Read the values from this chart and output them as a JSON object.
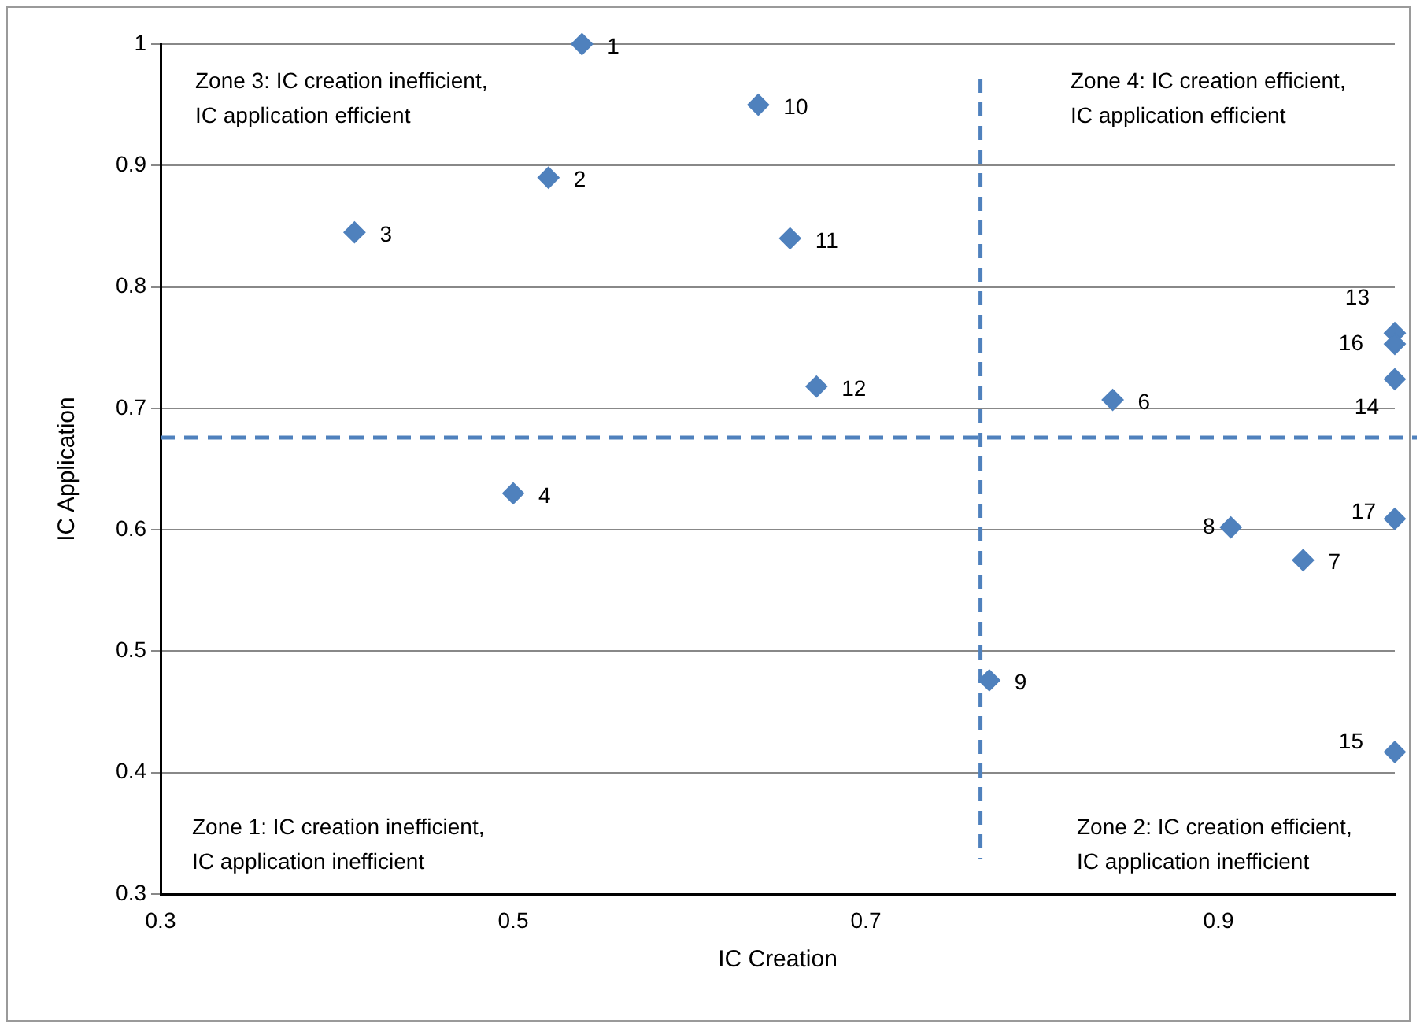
{
  "chart_data": {
    "type": "scatter",
    "xlabel": "IC Creation",
    "ylabel": "IC Application",
    "x": [
      0.539,
      0.52,
      0.41,
      0.5,
      0.84,
      0.948,
      0.907,
      0.77,
      0.639,
      0.657,
      0.672,
      1.0,
      1.0,
      1.0,
      1.0,
      1.0
    ],
    "series": [
      {
        "color": "#4f81bd",
        "values": [
          1.0,
          0.89,
          0.845,
          0.63,
          0.707,
          0.575,
          0.602,
          0.476,
          0.95,
          0.84,
          0.718,
          0.762,
          0.724,
          0.417,
          0.753,
          0.609
        ]
      }
    ],
    "marker": "diamond",
    "xlim": [
      0.3,
      1.0
    ],
    "xticks": [
      0.3,
      0.5,
      0.7,
      0.9
    ],
    "ylim": [
      0.3,
      1.0
    ],
    "yticks": [
      0.3,
      0.4,
      0.5,
      0.6,
      0.7,
      0.8,
      0.9,
      {
        "value": 1.0,
        "label": "1"
      }
    ],
    "grid": "y",
    "ref_lines": [
      {
        "axis": "y",
        "value": 0.676,
        "color": "#4f81bd",
        "line_style": "dashed"
      },
      {
        "axis": "x",
        "value": 0.765,
        "color": "#4f81bd",
        "line_style": "dashed"
      }
    ],
    "annotations": [
      "Zone 3: IC creation inefficient,\nIC application efficient",
      "Zone 4: IC creation efficient,\nIC application efficient",
      "Zone 1: IC creation inefficient,\nIC application inefficient",
      "Zone 2: IC creation efficient,\nIC application inefficient",
      {
        "text": "1",
        "x": 0.539,
        "y": 1.0
      },
      {
        "text": "2",
        "x": 0.52,
        "y": 0.89
      },
      {
        "text": "3",
        "x": 0.41,
        "y": 0.845
      },
      {
        "text": "4",
        "x": 0.5,
        "y": 0.63
      },
      {
        "text": "6",
        "x": 0.84,
        "y": 0.707
      },
      {
        "text": "7",
        "x": 0.948,
        "y": 0.575
      },
      {
        "text": "8",
        "x": 0.907,
        "y": 0.602
      },
      {
        "text": "9",
        "x": 0.77,
        "y": 0.476
      },
      {
        "text": "10",
        "x": 0.639,
        "y": 0.95
      },
      {
        "text": "11",
        "x": 0.657,
        "y": 0.84
      },
      {
        "text": "12",
        "x": 0.672,
        "y": 0.718
      },
      {
        "text": "13",
        "x": 1.0,
        "y": 0.762
      },
      {
        "text": "14",
        "x": 1.0,
        "y": 0.724
      },
      {
        "text": "15",
        "x": 1.0,
        "y": 0.417
      },
      {
        "text": "16",
        "x": 1.0,
        "y": 0.753
      },
      {
        "text": "17",
        "x": 1.0,
        "y": 0.609
      }
    ]
  }
}
